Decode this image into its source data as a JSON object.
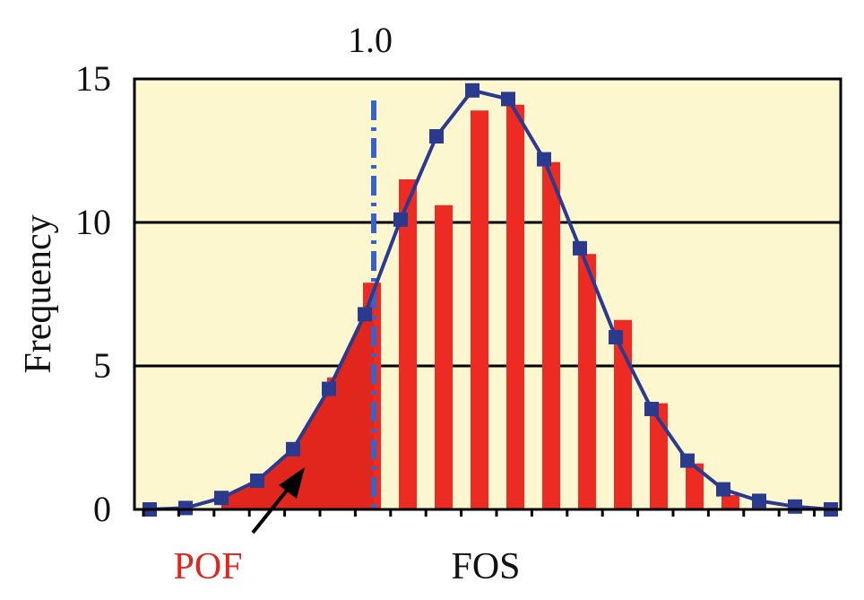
{
  "chart_data": {
    "type": "bar",
    "title": "",
    "xlabel": "FOS",
    "ylabel": "Frequency",
    "ylim": [
      0,
      15
    ],
    "yticks": [
      "0",
      "5",
      "10",
      "15"
    ],
    "grid": "horizontal",
    "threshold_label": "1.0",
    "threshold_index": 6,
    "pof_label": "POF",
    "background_color": "#fdf7cf",
    "bar_color": "#ee2b22",
    "line_color": "#2a3a8f",
    "threshold_color": "#3a62c4",
    "pof_color": "#e0261d",
    "bars": [
      0,
      0,
      0,
      0,
      2.0,
      4.6,
      7.9,
      11.5,
      10.6,
      13.9,
      14.1,
      12.1,
      8.9,
      6.6,
      3.7,
      1.6,
      0.5,
      0,
      0,
      0
    ],
    "curve": [
      0,
      0.05,
      0.4,
      1.0,
      2.1,
      4.2,
      6.8,
      10.1,
      13.0,
      14.6,
      14.3,
      12.2,
      9.1,
      6.0,
      3.5,
      1.7,
      0.7,
      0.3,
      0.1,
      0
    ]
  }
}
